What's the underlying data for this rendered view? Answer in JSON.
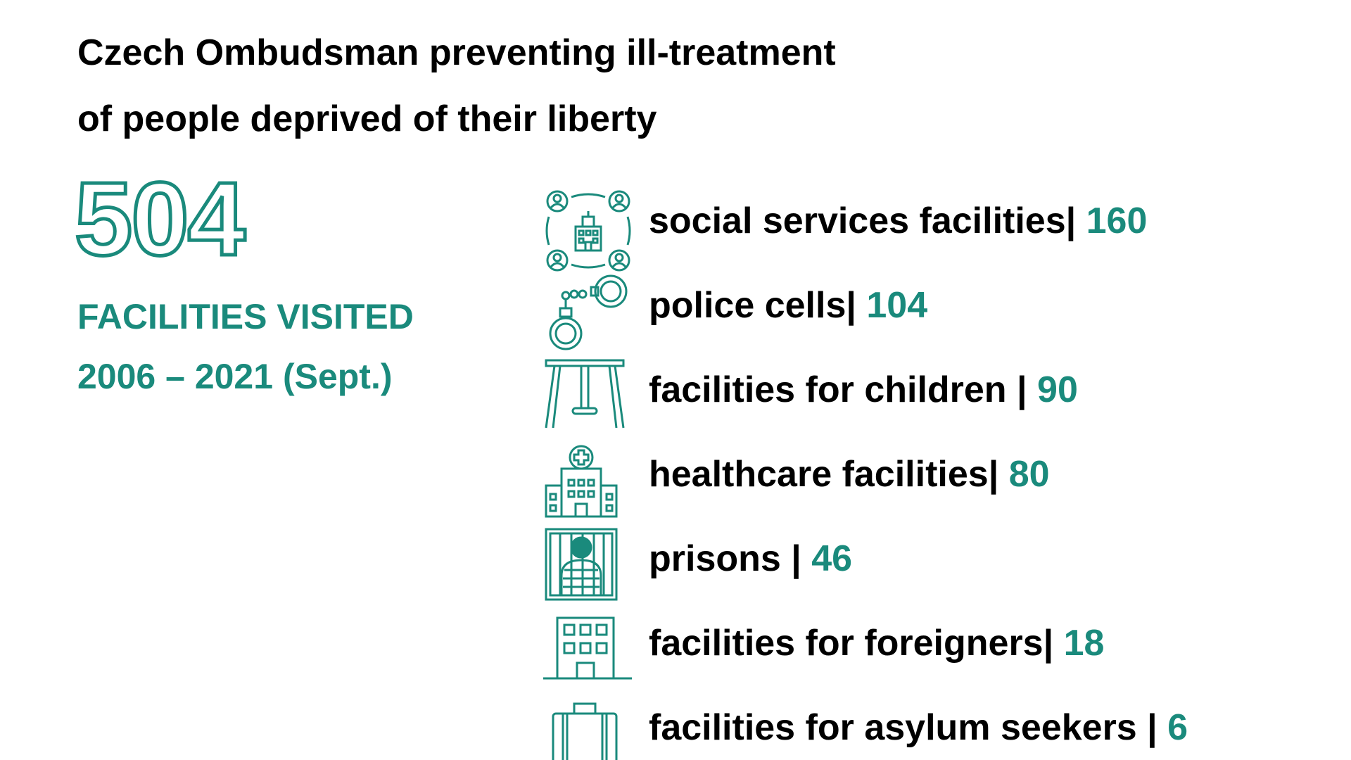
{
  "title": {
    "line1": "Czech Ombudsman preventing ill-treatment",
    "line2": "of people deprived of their liberty"
  },
  "summary": {
    "total": "504",
    "label": "FACILITIES VISITED",
    "period": "2006 – 2021 (Sept.)"
  },
  "accent_color": "#1a8a7c",
  "facilities": [
    {
      "label": "social services facilities",
      "sep": "| ",
      "count": "160",
      "icon": "social-services-icon"
    },
    {
      "label": "police cells",
      "sep": "| ",
      "count": "104",
      "icon": "handcuffs-icon"
    },
    {
      "label": "facilities for children ",
      "sep": "| ",
      "count": "90",
      "icon": "swing-icon"
    },
    {
      "label": "healthcare facilities",
      "sep": "| ",
      "count": "80",
      "icon": "hospital-icon"
    },
    {
      "label": "prisons ",
      "sep": "| ",
      "count": "46",
      "icon": "prisoner-icon"
    },
    {
      "label": "facilities for foreigners",
      "sep": "| ",
      "count": "18",
      "icon": "building-icon"
    },
    {
      "label": "facilities for asylum seekers ",
      "sep": "| ",
      "count": "6",
      "icon": "suitcase-icon"
    }
  ]
}
